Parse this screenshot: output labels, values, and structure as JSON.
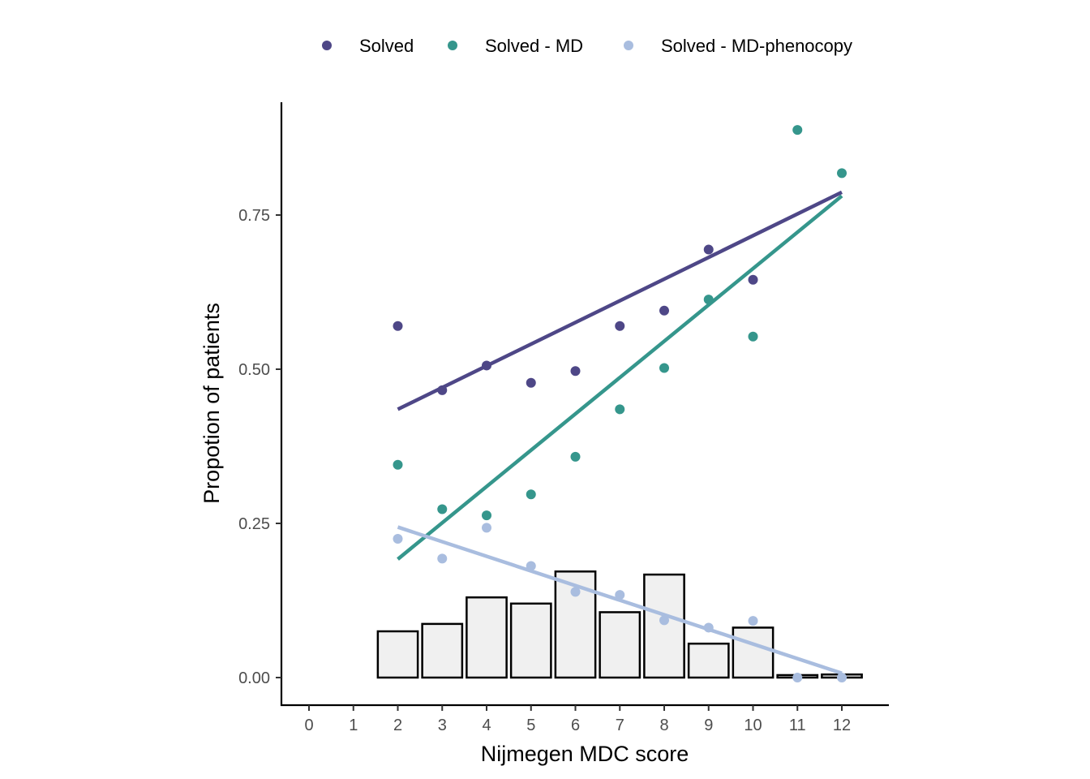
{
  "chart_data": {
    "type": "scatter",
    "xlabel": "Nijmegen MDC score",
    "ylabel": "Propotion of patients",
    "xlim": [
      -0.6,
      12.6
    ],
    "ylim": [
      -0.045,
      0.92
    ],
    "x_ticks": [
      0,
      1,
      2,
      3,
      4,
      5,
      6,
      7,
      8,
      9,
      10,
      11,
      12
    ],
    "y_ticks": [
      0.0,
      0.25,
      0.5,
      0.75
    ],
    "y_tick_labels": [
      "0.00",
      "0.25",
      "0.50",
      "0.75"
    ],
    "grid": false,
    "legend_position": "top",
    "series": [
      {
        "name": "Solved",
        "color": "#4e4787",
        "x": [
          2,
          3,
          4,
          5,
          6,
          7,
          8,
          9,
          10
        ],
        "y": [
          0.57,
          0.466,
          0.506,
          0.478,
          0.497,
          0.57,
          0.595,
          0.694,
          0.645
        ],
        "trend": {
          "x": [
            2,
            12
          ],
          "y": [
            0.435,
            0.787
          ]
        }
      },
      {
        "name": "Solved - MD",
        "color": "#35968c",
        "x": [
          2,
          3,
          4,
          5,
          6,
          7,
          8,
          9,
          10,
          11,
          12
        ],
        "y": [
          0.345,
          0.273,
          0.263,
          0.297,
          0.358,
          0.435,
          0.502,
          0.613,
          0.553,
          0.888,
          0.818
        ],
        "trend": {
          "x": [
            2,
            12
          ],
          "y": [
            0.192,
            0.781
          ]
        }
      },
      {
        "name": "Solved - MD-phenocopy",
        "color": "#a9bddf",
        "x": [
          2,
          3,
          4,
          5,
          6,
          7,
          8,
          9,
          10,
          11,
          12
        ],
        "y": [
          0.225,
          0.193,
          0.243,
          0.181,
          0.139,
          0.134,
          0.093,
          0.081,
          0.092,
          0.0,
          0.0
        ],
        "trend": {
          "x": [
            2,
            12
          ],
          "y": [
            0.244,
            0.007
          ]
        }
      }
    ],
    "histogram": {
      "fill": "#f0f0f0",
      "stroke": "#000000",
      "x": [
        2,
        3,
        4,
        5,
        6,
        7,
        8,
        9,
        10,
        11,
        12
      ],
      "values": [
        0.075,
        0.087,
        0.13,
        0.12,
        0.172,
        0.106,
        0.167,
        0.055,
        0.081,
        0.004,
        0.005
      ]
    }
  }
}
